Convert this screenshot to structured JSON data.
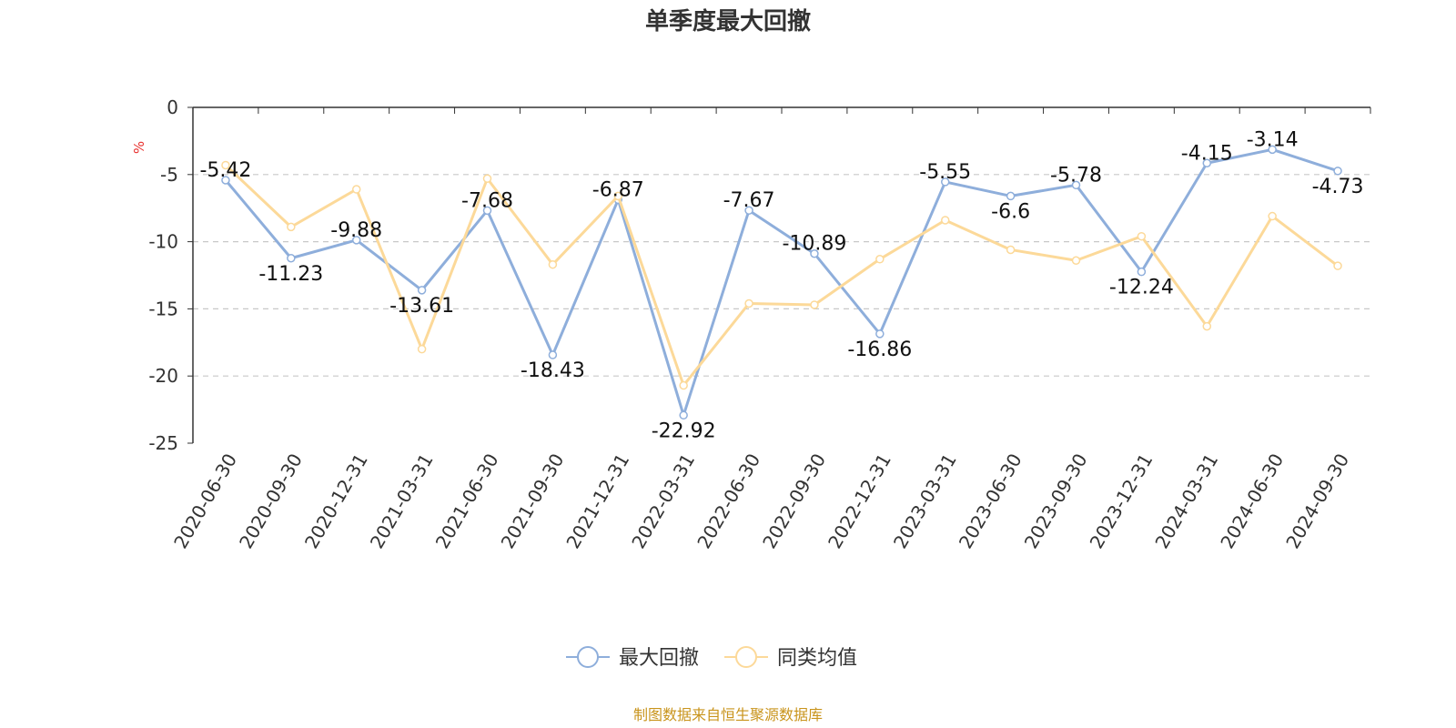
{
  "colors": {
    "series_max_drawdown": "#8eaedb",
    "series_peer_avg": "#fcd999",
    "unit": "#e8312f",
    "source": "#c9941c",
    "grid": "#c8c8c8",
    "axis": "#333333"
  },
  "chart_data": {
    "type": "line",
    "title": "单季度最大回撤",
    "ylabel": "%",
    "ylim": [
      -25,
      0
    ],
    "yticks": [
      0,
      -5,
      -10,
      -15,
      -20,
      -25
    ],
    "grid": true,
    "legend_position": "bottom-center",
    "categories": [
      "2020-06-30",
      "2020-09-30",
      "2020-12-31",
      "2021-03-31",
      "2021-06-30",
      "2021-09-30",
      "2021-12-31",
      "2022-03-31",
      "2022-06-30",
      "2022-09-30",
      "2022-12-31",
      "2023-03-31",
      "2023-06-30",
      "2023-09-30",
      "2023-12-31",
      "2024-03-31",
      "2024-06-30",
      "2024-09-30"
    ],
    "series": [
      {
        "name": "最大回撤",
        "color_key": "series_max_drawdown",
        "show_labels": true,
        "values": [
          -5.42,
          -11.23,
          -9.88,
          -13.61,
          -7.68,
          -18.43,
          -6.87,
          -22.92,
          -7.67,
          -10.89,
          -16.86,
          -5.55,
          -6.6,
          -5.78,
          -12.24,
          -4.15,
          -3.14,
          -4.73
        ]
      },
      {
        "name": "同类均值",
        "color_key": "series_peer_avg",
        "show_labels": false,
        "values": [
          -4.3,
          -8.9,
          -6.1,
          -18.0,
          -5.3,
          -11.7,
          -6.6,
          -20.7,
          -14.6,
          -14.7,
          -11.3,
          -8.4,
          -10.6,
          -11.4,
          -9.6,
          -16.3,
          -8.1,
          -11.8
        ]
      }
    ]
  },
  "source_text": "制图数据来自恒生聚源数据库"
}
